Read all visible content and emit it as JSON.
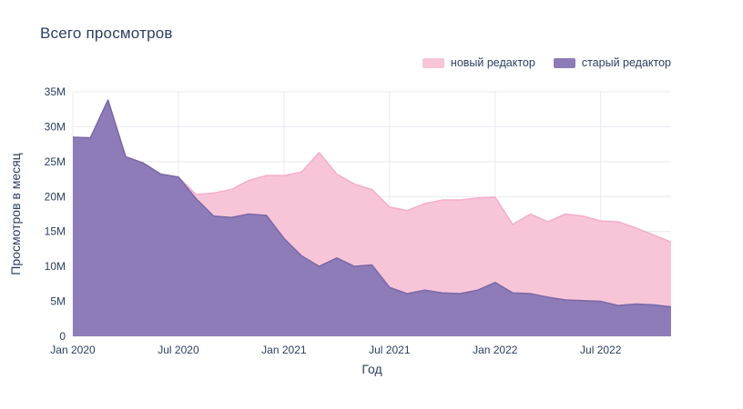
{
  "chart_data": {
    "type": "area",
    "stacked": true,
    "title": "Всего просмотров",
    "xlabel": "Год",
    "ylabel": "Просмотров в месяц",
    "ylim": [
      0,
      35
    ],
    "grid": true,
    "legend_position": "top-right",
    "text_color": "#2a3f5f",
    "grid_color": "#e9e9ef",
    "background_color": "#ffffff",
    "y_tick_values": [
      0,
      5,
      10,
      15,
      20,
      25,
      30,
      35
    ],
    "y_tick_labels": [
      "0",
      "5M",
      "10M",
      "15M",
      "20M",
      "25M",
      "30M",
      "35M"
    ],
    "x": [
      "2020-01",
      "2020-02",
      "2020-03",
      "2020-04",
      "2020-05",
      "2020-06",
      "2020-07",
      "2020-08",
      "2020-09",
      "2020-10",
      "2020-11",
      "2020-12",
      "2021-01",
      "2021-02",
      "2021-03",
      "2021-04",
      "2021-05",
      "2021-06",
      "2021-07",
      "2021-08",
      "2021-09",
      "2021-10",
      "2021-11",
      "2021-12",
      "2022-01",
      "2022-02",
      "2022-03",
      "2022-04",
      "2022-05",
      "2022-06",
      "2022-07",
      "2022-08",
      "2022-09",
      "2022-10",
      "2022-11"
    ],
    "x_tick_indices": [
      0,
      6,
      12,
      18,
      24,
      30
    ],
    "x_tick_labels": [
      "Jan 2020",
      "Jul 2020",
      "Jan 2021",
      "Jul 2021",
      "Jan 2022",
      "Jul 2022"
    ],
    "series": [
      {
        "name": "новый редактор",
        "color": "#f8c5d8",
        "line_color": "#f4afcb",
        "values": [
          0,
          0,
          0,
          0,
          0,
          0,
          0,
          0.6,
          3.3,
          4.0,
          4.8,
          5.7,
          9.0,
          12.0,
          16.3,
          12.0,
          11.8,
          10.8,
          11.5,
          11.9,
          12.4,
          13.3,
          13.4,
          13.2,
          12.2,
          9.8,
          11.4,
          10.8,
          12.3,
          12.1,
          11.5,
          12.0,
          10.9,
          10.0,
          9.3
        ]
      },
      {
        "name": "старый редактор",
        "color": "#8e7cb8",
        "line_color": "#7b6aa8",
        "values": [
          28.5,
          28.4,
          33.8,
          25.7,
          24.8,
          23.2,
          22.8,
          19.7,
          17.2,
          17.0,
          17.5,
          17.3,
          14.0,
          11.5,
          10.0,
          11.2,
          10.0,
          10.2,
          7.0,
          6.1,
          6.6,
          6.2,
          6.1,
          6.6,
          7.7,
          6.2,
          6.1,
          5.6,
          5.2,
          5.1,
          5.0,
          4.4,
          4.6,
          4.5,
          4.2
        ]
      }
    ]
  }
}
